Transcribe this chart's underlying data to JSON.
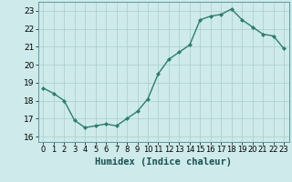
{
  "x": [
    0,
    1,
    2,
    3,
    4,
    5,
    6,
    7,
    8,
    9,
    10,
    11,
    12,
    13,
    14,
    15,
    16,
    17,
    18,
    19,
    20,
    21,
    22,
    23
  ],
  "y": [
    18.7,
    18.4,
    18.0,
    16.9,
    16.5,
    16.6,
    16.7,
    16.6,
    17.0,
    17.4,
    18.1,
    19.5,
    20.3,
    20.7,
    21.1,
    22.5,
    22.7,
    22.8,
    23.1,
    22.5,
    22.1,
    21.7,
    21.6,
    20.9
  ],
  "line_color": "#2e7d6e",
  "marker": "D",
  "marker_size": 2.0,
  "bg_color": "#ceeaea",
  "grid_color": "#aacccc",
  "xlabel": "Humidex (Indice chaleur)",
  "xlabel_fontsize": 7.5,
  "tick_fontsize": 6.5,
  "ylim": [
    15.7,
    23.5
  ],
  "yticks": [
    16,
    17,
    18,
    19,
    20,
    21,
    22,
    23
  ],
  "xticks": [
    0,
    1,
    2,
    3,
    4,
    5,
    6,
    7,
    8,
    9,
    10,
    11,
    12,
    13,
    14,
    15,
    16,
    17,
    18,
    19,
    20,
    21,
    22,
    23
  ],
  "line_width": 1.0,
  "spine_color": "#5a9a9a"
}
